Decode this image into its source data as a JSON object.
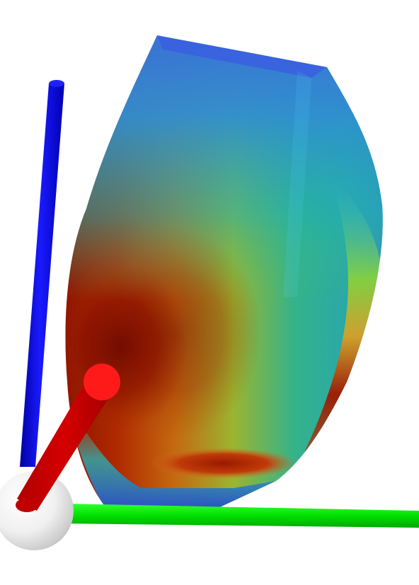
{
  "scene": {
    "background": "#ffffff",
    "object": "3d-colormapped-surface",
    "colormap": [
      "#1f3fbf",
      "#2a7fd6",
      "#1fb5b0",
      "#7ec83a",
      "#f0c020",
      "#d04a10",
      "#8a0e00"
    ],
    "axes": [
      {
        "axis": "x",
        "color": "#ff0000"
      },
      {
        "axis": "y",
        "color": "#00e000"
      },
      {
        "axis": "z",
        "color": "#0000ee"
      }
    ],
    "origin_sphere_color": "#f2f2f2"
  }
}
